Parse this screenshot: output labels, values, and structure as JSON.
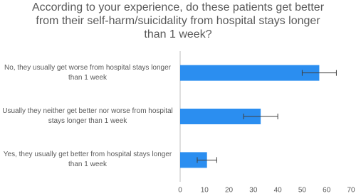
{
  "chart_data": {
    "type": "bar",
    "orientation": "horizontal",
    "title": "According to your experience, do these patients get better from their self-harm/suicidality from hospital stays longer than 1 week?",
    "categories": [
      "No, they usually get worse from hospital stays longer than 1 week",
      "Usually they neither get better nor worse from hospital stays longer than 1 week",
      "Yes, they usually get better from hospital stays longer than 1 week"
    ],
    "values": [
      57,
      33,
      11
    ],
    "errors": [
      7,
      7,
      4
    ],
    "color": "#2b8ef0",
    "xlim": [
      0,
      70
    ],
    "xticks": [
      0,
      10,
      20,
      30,
      40,
      50,
      60,
      70
    ],
    "grid": false
  }
}
